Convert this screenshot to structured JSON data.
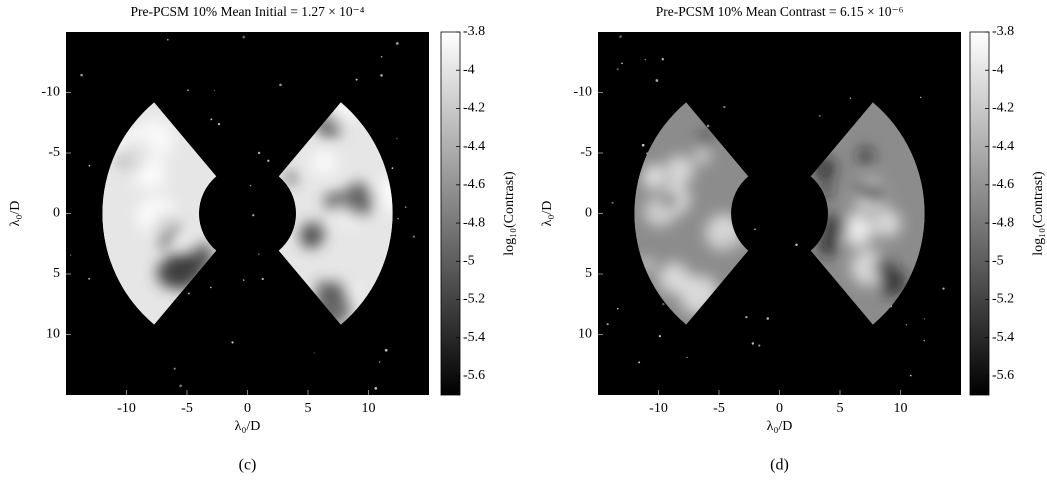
{
  "chart_data": [
    {
      "type": "heatmap",
      "title": "Pre-PCSM 10% Mean Initial = 1.27 × 10⁻⁴",
      "xlabel": "λ₀/D",
      "ylabel": "λ₀/D",
      "xlim": [
        -15,
        15
      ],
      "ylim": [
        15,
        -15
      ],
      "xticks": [
        -10,
        -5,
        0,
        5,
        10
      ],
      "yticks": [
        -10,
        -5,
        0,
        5,
        10
      ],
      "colormap": "gray",
      "colorbar": {
        "label": "log₁₀(Contrast)",
        "lim": [
          -5.7,
          -3.8
        ],
        "ticks": [
          -3.8,
          -4,
          -4.2,
          -4.4,
          -4.6,
          -4.8,
          -5,
          -5.2,
          -5.4,
          -5.6
        ]
      },
      "caption": "(c)"
    },
    {
      "type": "heatmap",
      "title": "Pre-PCSM 10% Mean Contrast = 6.15 × 10⁻⁶",
      "xlabel": "λ₀/D",
      "ylabel": "λ₀/D",
      "xlim": [
        -15,
        15
      ],
      "ylim": [
        15,
        -15
      ],
      "xticks": [
        -10,
        -5,
        0,
        5,
        10
      ],
      "yticks": [
        -10,
        -5,
        0,
        5,
        10
      ],
      "colormap": "gray",
      "colorbar": {
        "label": "log₁₀(Contrast)",
        "lim": [
          -5.7,
          -3.8
        ],
        "ticks": [
          -3.8,
          -4,
          -4.2,
          -4.4,
          -4.6,
          -4.8,
          -5,
          -5.2,
          -5.4,
          -5.6
        ]
      },
      "caption": "(d)"
    }
  ]
}
